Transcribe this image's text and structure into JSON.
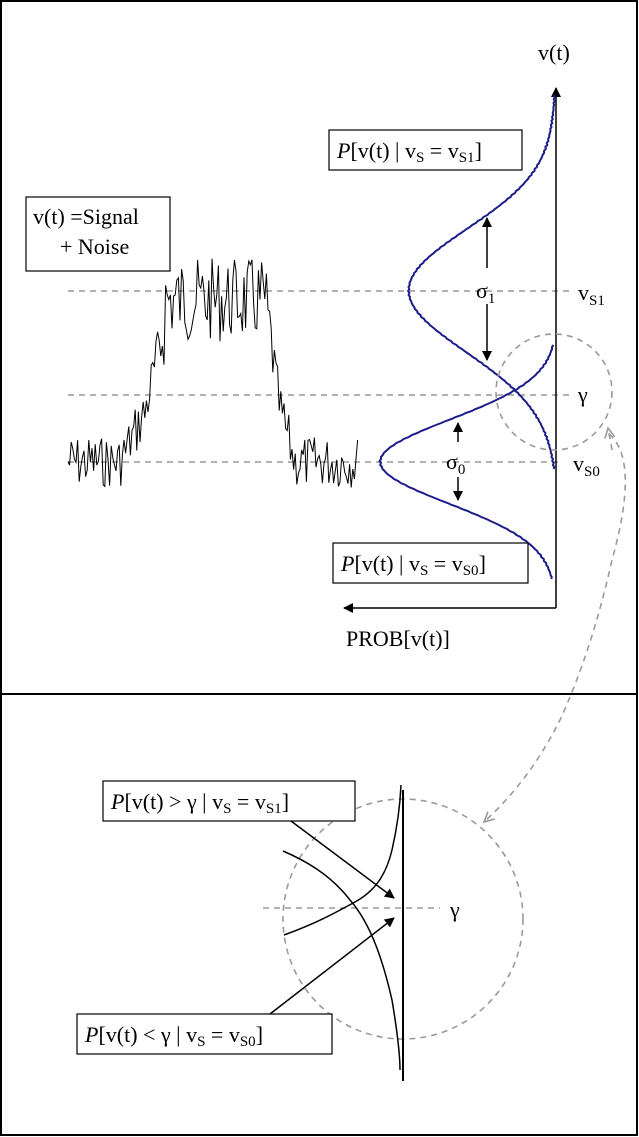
{
  "top_panel": {
    "axis_v": "v(t)",
    "axis_prob": "PROB[v(t)]",
    "signal_box": {
      "line1": "v(t) =Signal",
      "line2": "+ Noise"
    },
    "pdf_s1": {
      "P": "P",
      "expr": "[v(t) | v",
      "s": "S",
      "eq": " = v",
      "sub": "S1",
      "close": "]"
    },
    "pdf_s0": {
      "P": "P",
      "expr": "[v(t) | v",
      "s": "S",
      "eq": " = v",
      "sub": "S0",
      "close": "]"
    },
    "sigma1": {
      "sym": "σ",
      "sub": "1"
    },
    "sigma0": {
      "sym": "σ",
      "sub": "0"
    },
    "gamma": "γ",
    "vs1": {
      "v": "v",
      "sub": "S1"
    },
    "vs0": {
      "v": "v",
      "sub": "S0"
    }
  },
  "bottom_panel": {
    "upper_box": {
      "P": "P",
      "expr": "[v(t) > γ | v",
      "s": "S",
      "eq": " = v",
      "sub": "S1",
      "close": "]"
    },
    "lower_box": {
      "P": "P",
      "expr": "[v(t) < γ | v",
      "s": "S",
      "eq": " = v",
      "sub": "S0",
      "close": "]"
    },
    "gamma": "γ"
  },
  "colors": {
    "curve": "#1c1c8a",
    "dashed": "#9a9a9a"
  }
}
